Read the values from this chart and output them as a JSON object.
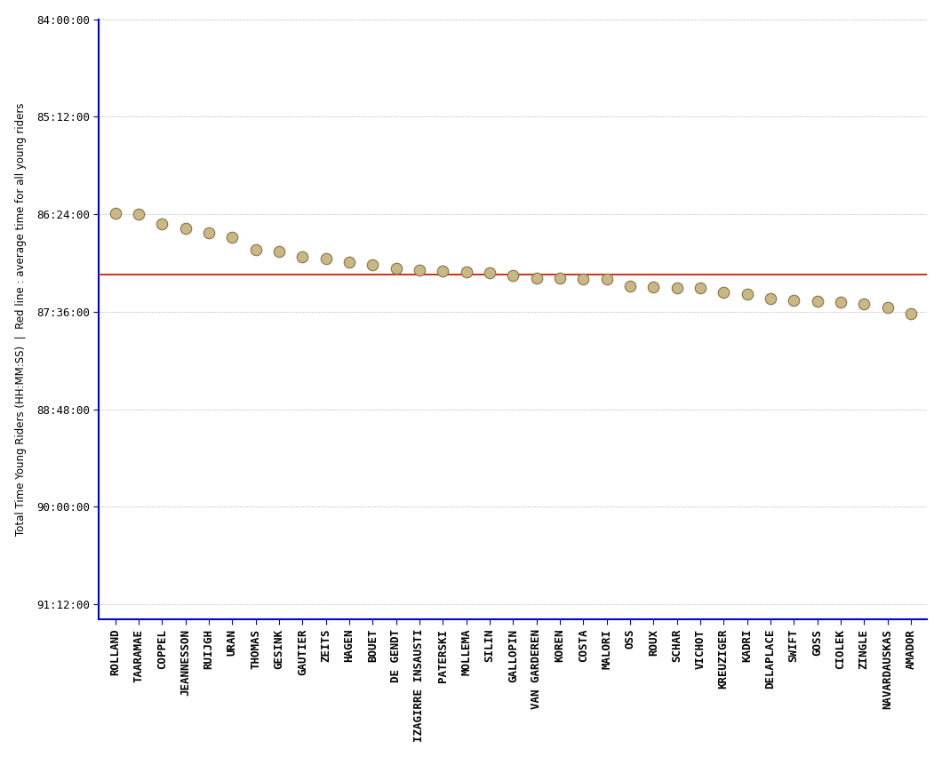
{
  "riders": [
    "ROLLAND",
    "TAARAMAE",
    "COPPEL",
    "JEANNESSON",
    "RUIJGH",
    "URAN",
    "THOMAS",
    "GESINK",
    "GAUTIER",
    "ZEITS",
    "HAGEN",
    "BOUET",
    "DE GENDT",
    "IZAGIRRE INSAUSTI",
    "PATERSKI",
    "MOLLEMA",
    "SILIN",
    "GALLOPIN",
    "VAN GARDEREN",
    "KOREN",
    "COSTA",
    "MALORI",
    "OSS",
    "ROUX",
    "SCHAR",
    "VICHOT",
    "KREUZIGER",
    "KADRI",
    "DELAPLACE",
    "SWIFT",
    "GOSS",
    "CIOLEK",
    "ZINGLE",
    "NAVARDAUSKAS",
    "AMADOR"
  ],
  "times_seconds": [
    310985,
    311031,
    311458,
    311680,
    311870,
    312060,
    312590,
    312680,
    312920,
    312990,
    313165,
    313295,
    313440,
    313525,
    313550,
    313575,
    313640,
    313760,
    313850,
    313880,
    313905,
    313915,
    314215,
    314255,
    314285,
    314300,
    314500,
    314590,
    314780,
    314840,
    314880,
    314920,
    315010,
    315180,
    315430
  ],
  "average_time_seconds": 313710,
  "ylabel": "Total Time Young Riders (HH:MM:SS)  |  Red line : average time for all young riders",
  "yticks_seconds": [
    302400,
    306720,
    311040,
    315360,
    319680,
    324000,
    328320
  ],
  "ytick_labels": [
    "84:00:00",
    "85:12:00",
    "86:24:00",
    "87:36:00",
    "88:48:00",
    "90:00:00",
    "91:12:00"
  ],
  "ylim_min": 302400,
  "ylim_max": 329000,
  "dot_facecolor": "#c8b882",
  "dot_edgecolor": "#8a7050",
  "average_line_color": "#cc2200",
  "axis_color": "#0000cc",
  "grid_color": "#b0b0b0",
  "background_color": "#ffffff",
  "tick_fontsize": 9,
  "label_fontsize": 8.5
}
